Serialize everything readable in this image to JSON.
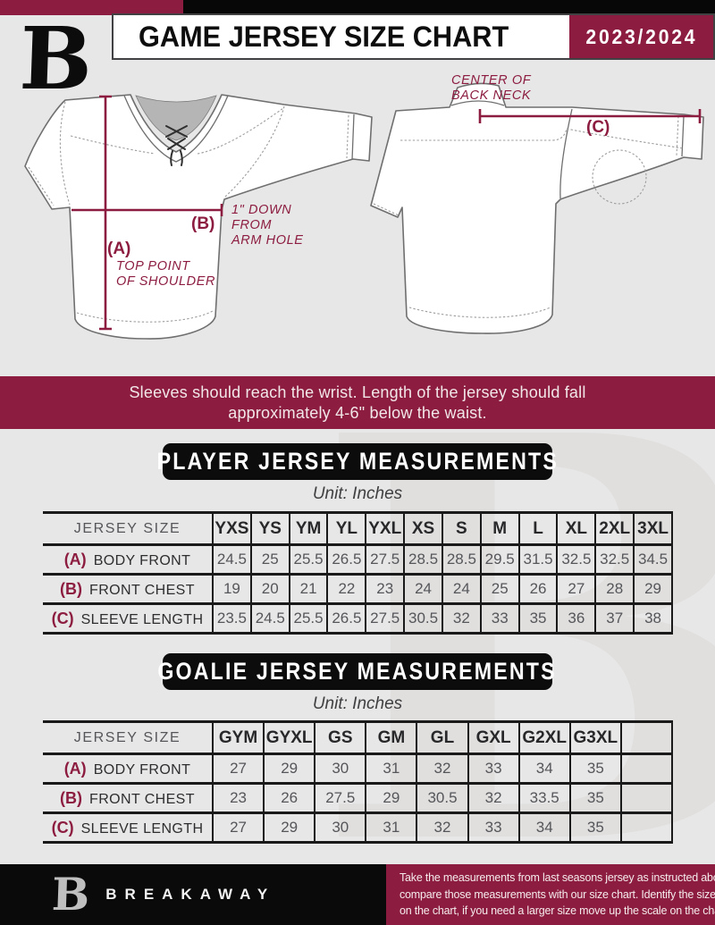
{
  "colors": {
    "maroon": "#8C1D40",
    "black": "#0B0B0B",
    "background": "#E8E7E7",
    "watermark": "#E0DFDE"
  },
  "header": {
    "title": "GAME JERSEY SIZE CHART",
    "season": "2023/2024",
    "logo": "breakaway-b-monogram"
  },
  "watermark_glyph": "B",
  "diagrams": {
    "front": {
      "a_key": "(A)",
      "a_note_line1": "TOP POINT",
      "a_note_line2": "OF SHOULDER",
      "b_key": "(B)",
      "b_note_line1": "1\" DOWN",
      "b_note_line2": "FROM",
      "b_note_line3": "ARM HOLE"
    },
    "back": {
      "c_key": "(C)",
      "c_note_line1": "CENTER OF",
      "c_note_line2": "BACK NECK"
    }
  },
  "banner": {
    "line1": "Sleeves should reach the wrist. Length of the jersey should fall",
    "line2": "approximately 4-6\" below the waist."
  },
  "player_section": {
    "title": "PLAYER JERSEY MEASUREMENTS",
    "unit": "Unit: Inches"
  },
  "player_table": {
    "size_header": "JERSEY SIZE",
    "sizes": [
      "YXS",
      "YS",
      "YM",
      "YL",
      "YXL",
      "XS",
      "S",
      "M",
      "L",
      "XL",
      "2XL",
      "3XL"
    ],
    "rows": [
      {
        "key": "(A)",
        "label": "BODY FRONT",
        "values": [
          "24.5",
          "25",
          "25.5",
          "26.5",
          "27.5",
          "28.5",
          "28.5",
          "29.5",
          "31.5",
          "32.5",
          "32.5",
          "34.5"
        ]
      },
      {
        "key": "(B)",
        "label": "FRONT CHEST",
        "values": [
          "19",
          "20",
          "21",
          "22",
          "23",
          "24",
          "24",
          "25",
          "26",
          "27",
          "28",
          "29"
        ]
      },
      {
        "key": "(C)",
        "label": "SLEEVE LENGTH",
        "values": [
          "23.5",
          "24.5",
          "25.5",
          "26.5",
          "27.5",
          "30.5",
          "32",
          "33",
          "35",
          "36",
          "37",
          "38"
        ]
      }
    ]
  },
  "goalie_section": {
    "title": "GOALIE JERSEY MEASUREMENTS",
    "unit": "Unit: Inches"
  },
  "goalie_table": {
    "size_header": "JERSEY SIZE",
    "sizes": [
      "GYM",
      "GYXL",
      "GS",
      "GM",
      "GL",
      "GXL",
      "G2XL",
      "G3XL",
      ""
    ],
    "rows": [
      {
        "key": "(A)",
        "label": "BODY FRONT",
        "values": [
          "27",
          "29",
          "30",
          "31",
          "32",
          "33",
          "34",
          "35",
          ""
        ]
      },
      {
        "key": "(B)",
        "label": "FRONT CHEST",
        "values": [
          "23",
          "26",
          "27.5",
          "29",
          "30.5",
          "32",
          "33.5",
          "35",
          ""
        ]
      },
      {
        "key": "(C)",
        "label": "SLEEVE LENGTH",
        "values": [
          "27",
          "29",
          "30",
          "31",
          "32",
          "33",
          "34",
          "35",
          ""
        ]
      }
    ]
  },
  "footer": {
    "brand": "BREAKAWAY",
    "lines": [
      "Take the measurements from last seasons jersey as instructed above",
      "compare those measurements  with our size chart. Identify the size",
      "on the chart, if you need a larger size move up the scale on the chart"
    ]
  }
}
